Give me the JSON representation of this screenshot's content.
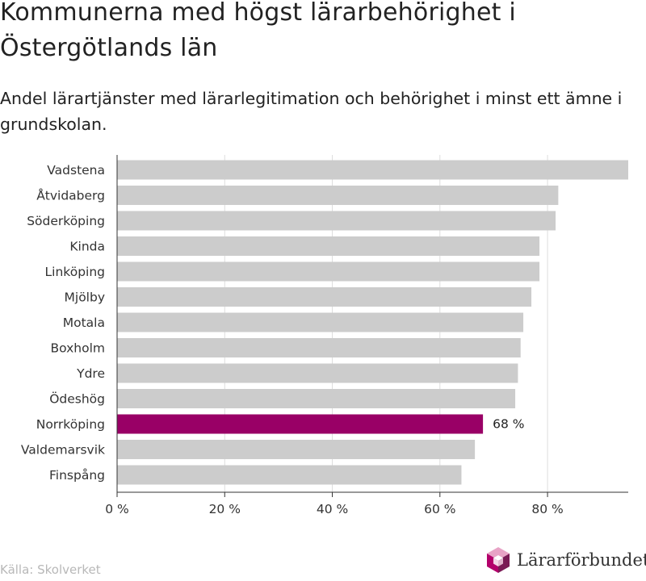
{
  "title": "Kommunerna med högst lärarbehörighet i Östergötlands län",
  "subtitle": "Andel lärartjänster med lärarlegitimation och behörighet i minst ett ämne i grundskolan.",
  "source": "Källa: Skolverket",
  "brand": {
    "name": "Lärarförbundet",
    "logo_icon": "hexagon-cube-icon"
  },
  "colors": {
    "bar": "#cccccc",
    "highlight": "#990066",
    "grid": "#dddddd",
    "axis": "#333333"
  },
  "chart_data": {
    "type": "bar",
    "orientation": "horizontal",
    "categories": [
      "Vadstena",
      "Åtvidaberg",
      "Söderköping",
      "Kinda",
      "Linköping",
      "Mjölby",
      "Motala",
      "Boxholm",
      "Ydre",
      "Ödeshög",
      "Norrköping",
      "Valdemarsvik",
      "Finspång"
    ],
    "values": [
      95,
      82,
      81.5,
      78.5,
      78.5,
      77,
      75.5,
      75,
      74.5,
      74,
      68,
      66.5,
      64
    ],
    "highlight": "Norrköping",
    "data_labels": [
      {
        "category": "Norrköping",
        "text": "68 %"
      }
    ],
    "xlim": [
      0,
      95
    ],
    "x_ticks": [
      0,
      20,
      40,
      60,
      80
    ],
    "x_tick_labels": [
      "0 %",
      "20 %",
      "40 %",
      "60 %",
      "80 %"
    ],
    "grid": true
  }
}
